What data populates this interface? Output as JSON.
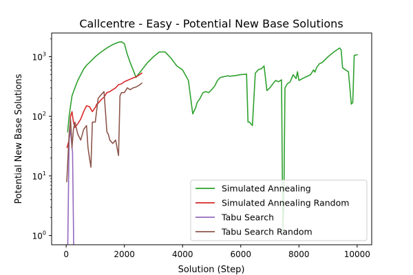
{
  "chart_data": {
    "type": "line",
    "title": "Callcentre - Easy - Potential New Base Solutions",
    "xlabel": "Solution (Step)",
    "ylabel": "Potential New Base Solutions",
    "xlim": [
      -500,
      10500
    ],
    "ylim": [
      0.7,
      2500
    ],
    "yscale": "log",
    "x_ticks": [
      {
        "value": 0,
        "label": "0"
      },
      {
        "value": 2000,
        "label": "2000"
      },
      {
        "value": 4000,
        "label": "4000"
      },
      {
        "value": 6000,
        "label": "6000"
      },
      {
        "value": 8000,
        "label": "8000"
      },
      {
        "value": 10000,
        "label": "10000"
      }
    ],
    "y_ticks": [
      {
        "value": 1,
        "base": "10",
        "exp": "0"
      },
      {
        "value": 10,
        "base": "10",
        "exp": "1"
      },
      {
        "value": 100,
        "base": "10",
        "exp": "2"
      },
      {
        "value": 1000,
        "base": "10",
        "exp": "3"
      }
    ],
    "grid": false,
    "legend": "lower-right",
    "series": [
      {
        "name": "Simulated Annealing",
        "color": "#2ca02c",
        "x": [
          50,
          100,
          150,
          200,
          300,
          400,
          500,
          600,
          700,
          800,
          1000,
          1200,
          1400,
          1600,
          1800,
          1900,
          2000,
          2100,
          2200,
          2300,
          2400,
          2500,
          2600,
          2800,
          3000,
          3200,
          3400,
          3600,
          3800,
          4000,
          4200,
          4350,
          4450,
          4500,
          4600,
          4700,
          4800,
          4900,
          5000,
          5100,
          5200,
          5300,
          5400,
          5500,
          5550,
          5600,
          5800,
          6000,
          6200,
          6250,
          6300,
          6400,
          6500,
          6600,
          6650,
          6700,
          6800,
          6900,
          7000,
          7100,
          7200,
          7300,
          7400,
          7430,
          7450,
          7480,
          7520,
          7600,
          7700,
          7800,
          7900,
          7950,
          8000,
          8200,
          8400,
          8500,
          8550,
          8600,
          8700,
          8800,
          9000,
          9200,
          9300,
          9400,
          9450,
          9500,
          9600,
          9700,
          9800,
          9850,
          9900,
          10000
        ],
        "y": [
          55,
          100,
          150,
          220,
          300,
          400,
          500,
          620,
          720,
          800,
          1000,
          1200,
          1400,
          1600,
          1750,
          1780,
          1650,
          1100,
          800,
          600,
          450,
          520,
          600,
          800,
          1000,
          1200,
          1200,
          950,
          700,
          600,
          400,
          110,
          140,
          170,
          200,
          250,
          260,
          250,
          280,
          320,
          400,
          450,
          460,
          470,
          480,
          470,
          480,
          500,
          510,
          80,
          80,
          70,
          530,
          600,
          620,
          620,
          700,
          270,
          300,
          350,
          400,
          380,
          410,
          9,
          1.2,
          3,
          300,
          350,
          380,
          500,
          430,
          560,
          400,
          450,
          500,
          600,
          550,
          650,
          760,
          800,
          1000,
          1200,
          1300,
          1400,
          1300,
          650,
          600,
          560,
          160,
          170,
          1050,
          1080
        ]
      },
      {
        "name": "Simulated Annealing Random",
        "color": "#d62728",
        "x": [
          30,
          100,
          150,
          200,
          250,
          300,
          400,
          500,
          600,
          700,
          800,
          900,
          1000,
          1050,
          1100,
          1200,
          1300,
          1400,
          1500,
          1600,
          1700,
          1800,
          1900,
          2000,
          2100,
          2200,
          2300,
          2400,
          2500,
          2600
        ],
        "y": [
          30,
          40,
          100,
          120,
          80,
          65,
          75,
          90,
          120,
          150,
          145,
          120,
          140,
          160,
          165,
          190,
          210,
          250,
          260,
          280,
          300,
          340,
          350,
          380,
          400,
          420,
          440,
          460,
          490,
          530
        ]
      },
      {
        "name": "Tabu Search",
        "color": "#9467bd",
        "x": [
          50,
          100,
          150,
          200,
          220,
          250,
          260
        ],
        "y": [
          0.5,
          40,
          60,
          30,
          25,
          1.5,
          0.5
        ]
      },
      {
        "name": "Tabu Search Random",
        "color": "#8c564b",
        "x": [
          20,
          100,
          150,
          200,
          250,
          300,
          400,
          500,
          600,
          700,
          750,
          800,
          850,
          900,
          1000,
          1100,
          1200,
          1300,
          1400,
          1450,
          1500,
          1600,
          1700,
          1800,
          1850,
          1900,
          2000,
          2100,
          2200,
          2300,
          2400,
          2500,
          2600
        ],
        "y": [
          8,
          50,
          90,
          30,
          60,
          80,
          50,
          40,
          60,
          70,
          30,
          20,
          14,
          80,
          80,
          200,
          230,
          260,
          55,
          50,
          40,
          35,
          40,
          22,
          220,
          250,
          250,
          300,
          280,
          300,
          310,
          330,
          360
        ]
      }
    ]
  }
}
